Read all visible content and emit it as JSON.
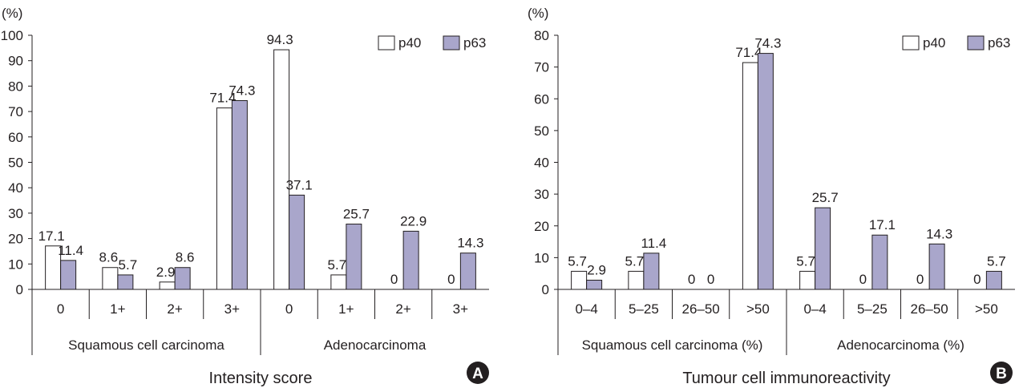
{
  "chart_data": [
    {
      "panel": "A",
      "type": "bar",
      "unit": "(%)",
      "ylim": [
        0,
        100
      ],
      "yticks": [
        0,
        10,
        20,
        30,
        40,
        50,
        60,
        70,
        80,
        90,
        100
      ],
      "xlabel": "Intensity score",
      "groups": [
        "Squamous cell carcinoma",
        "Adenocarcinoma"
      ],
      "categories": [
        "0",
        "1+",
        "2+",
        "3+",
        "0",
        "1+",
        "2+",
        "3+"
      ],
      "series": [
        {
          "name": "p40",
          "color": "#ffffff",
          "values": [
            17.1,
            8.6,
            2.9,
            71.4,
            94.3,
            5.7,
            0,
            0
          ]
        },
        {
          "name": "p63",
          "color": "#a9a6cb",
          "values": [
            11.4,
            5.7,
            8.6,
            74.3,
            37.1,
            25.7,
            22.9,
            14.3
          ]
        }
      ],
      "data_labels": [
        [
          "17.1",
          "8.6",
          "2.9",
          "71.4",
          "94.3",
          "5.7",
          "0",
          "0"
        ],
        [
          "11.4",
          "5.7",
          "8.6",
          "74.3",
          "37.1",
          "25.7",
          "22.9",
          "14.3"
        ]
      ],
      "legend": "top-right",
      "grid": false
    },
    {
      "panel": "B",
      "type": "bar",
      "unit": "(%)",
      "ylim": [
        0,
        80
      ],
      "yticks": [
        0,
        10,
        20,
        30,
        40,
        50,
        60,
        70,
        80
      ],
      "xlabel": "Tumour cell immunoreactivity",
      "groups": [
        "Squamous cell carcinoma (%)",
        "Adenocarcinoma (%)"
      ],
      "categories": [
        "0–4",
        "5–25",
        "26–50",
        ">50",
        "0–4",
        "5–25",
        "26–50",
        ">50"
      ],
      "series": [
        {
          "name": "p40",
          "color": "#ffffff",
          "values": [
            5.7,
            5.7,
            0,
            71.4,
            5.7,
            0,
            0,
            0
          ]
        },
        {
          "name": "p63",
          "color": "#a9a6cb",
          "values": [
            2.9,
            11.4,
            0,
            74.3,
            25.7,
            17.1,
            14.3,
            5.7
          ]
        }
      ],
      "data_labels": [
        [
          "5.7",
          "5.7",
          "0",
          "71.4",
          "5.7",
          "0",
          "0",
          "0"
        ],
        [
          "2.9",
          "11.4",
          "0",
          "74.3",
          "25.7",
          "17.1",
          "14.3",
          "5.7"
        ]
      ],
      "legend": "top-right",
      "grid": false
    }
  ]
}
